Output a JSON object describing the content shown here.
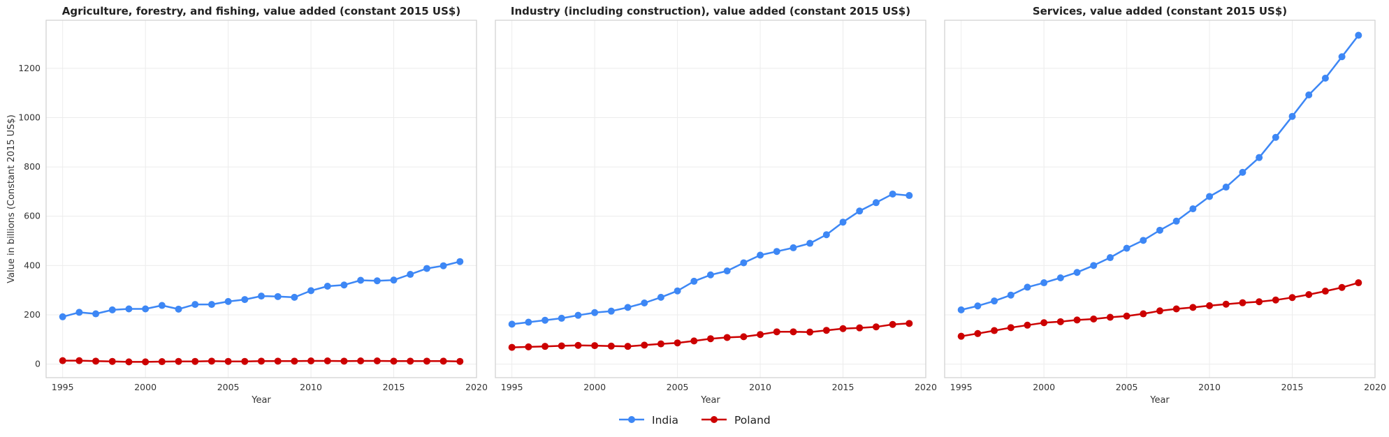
{
  "chart_data": [
    {
      "type": "line",
      "title": "Agriculture, forestry, and fishing, value added (constant 2015 US$)",
      "xlabel": "Year",
      "ylabel": "Value in billions (Constant 2015 US$)",
      "xlim": [
        1994,
        2020
      ],
      "ylim": [
        -55,
        1395
      ],
      "xticks": [
        1995,
        2000,
        2005,
        2010,
        2015,
        2020
      ],
      "yticks": [
        0,
        200,
        400,
        600,
        800,
        1000,
        1200
      ],
      "grid": true,
      "x": [
        1995,
        1996,
        1997,
        1998,
        1999,
        2000,
        2001,
        2002,
        2003,
        2004,
        2005,
        2006,
        2007,
        2008,
        2009,
        2010,
        2011,
        2012,
        2013,
        2014,
        2015,
        2016,
        2017,
        2018,
        2019
      ],
      "series": [
        {
          "name": "India",
          "color": "#3d87f5",
          "values": [
            192,
            210,
            204,
            220,
            224,
            224,
            238,
            223,
            242,
            242,
            254,
            262,
            276,
            274,
            271,
            298,
            316,
            321,
            340,
            338,
            341,
            364,
            388,
            399,
            416
          ]
        },
        {
          "name": "Poland",
          "color": "#cc0000",
          "values": [
            14,
            14,
            12,
            11,
            9,
            9,
            10,
            11,
            11,
            12,
            11,
            11,
            12,
            12,
            12,
            13,
            13,
            12,
            13,
            13,
            12,
            12,
            12,
            12,
            11
          ]
        }
      ]
    },
    {
      "type": "line",
      "title": "Industry (including construction), value added (constant 2015 US$)",
      "xlabel": "Year",
      "ylabel": "",
      "xlim": [
        1994,
        2020
      ],
      "ylim": [
        -55,
        1395
      ],
      "xticks": [
        1995,
        2000,
        2005,
        2010,
        2015,
        2020
      ],
      "yticks": [
        0,
        200,
        400,
        600,
        800,
        1000,
        1200
      ],
      "grid": true,
      "x": [
        1995,
        1996,
        1997,
        1998,
        1999,
        2000,
        2001,
        2002,
        2003,
        2004,
        2005,
        2006,
        2007,
        2008,
        2009,
        2010,
        2011,
        2012,
        2013,
        2014,
        2015,
        2016,
        2017,
        2018,
        2019
      ],
      "series": [
        {
          "name": "India",
          "color": "#3d87f5",
          "values": [
            162,
            170,
            178,
            186,
            198,
            209,
            215,
            230,
            248,
            271,
            297,
            336,
            362,
            378,
            411,
            442,
            457,
            472,
            490,
            525,
            576,
            621,
            655,
            690,
            684
          ]
        },
        {
          "name": "Poland",
          "color": "#cc0000",
          "values": [
            68,
            70,
            72,
            74,
            76,
            75,
            73,
            72,
            77,
            82,
            86,
            94,
            103,
            108,
            111,
            120,
            131,
            131,
            130,
            137,
            144,
            147,
            151,
            161,
            165
          ]
        }
      ]
    },
    {
      "type": "line",
      "title": "Services, value added (constant 2015 US$)",
      "xlabel": "Year",
      "ylabel": "",
      "xlim": [
        1994,
        2020
      ],
      "ylim": [
        -55,
        1395
      ],
      "xticks": [
        1995,
        2000,
        2005,
        2010,
        2015,
        2020
      ],
      "yticks": [
        0,
        200,
        400,
        600,
        800,
        1000,
        1200
      ],
      "grid": true,
      "x": [
        1995,
        1996,
        1997,
        1998,
        1999,
        2000,
        2001,
        2002,
        2003,
        2004,
        2005,
        2006,
        2007,
        2008,
        2009,
        2010,
        2011,
        2012,
        2013,
        2014,
        2015,
        2016,
        2017,
        2018,
        2019
      ],
      "series": [
        {
          "name": "India",
          "color": "#3d87f5",
          "values": [
            220,
            236,
            256,
            280,
            312,
            330,
            350,
            372,
            400,
            432,
            470,
            502,
            543,
            580,
            630,
            680,
            718,
            778,
            838,
            920,
            1005,
            1092,
            1160,
            1247,
            1334
          ]
        },
        {
          "name": "Poland",
          "color": "#cc0000",
          "values": [
            113,
            124,
            136,
            148,
            158,
            168,
            172,
            179,
            183,
            190,
            195,
            204,
            216,
            224,
            230,
            237,
            243,
            249,
            253,
            260,
            270,
            282,
            296,
            311,
            330
          ]
        }
      ]
    }
  ],
  "legend": {
    "placement": "bottom-center",
    "entries": [
      {
        "label": "India",
        "color": "#3d87f5"
      },
      {
        "label": "Poland",
        "color": "#cc0000"
      }
    ]
  }
}
